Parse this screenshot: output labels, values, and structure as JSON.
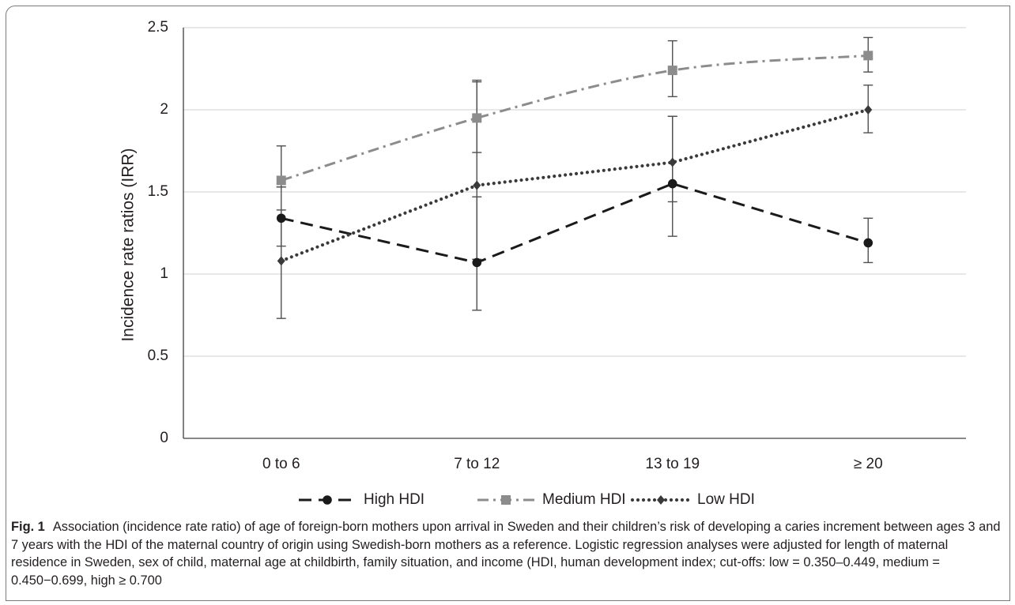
{
  "chart_data": {
    "type": "line",
    "title": "",
    "xlabel": "",
    "ylabel": "Incidence rate ratios (IRR)",
    "categories": [
      "0 to 6",
      "7 to 12",
      "13 to 19",
      "≥ 20"
    ],
    "ylim": [
      0,
      2.5
    ],
    "yticks": [
      "0",
      "0.5",
      "1",
      "1.5",
      "2",
      "2.5"
    ],
    "grid": "horizontal",
    "legend_position": "bottom",
    "series": [
      {
        "name": "High HDI",
        "values": [
          1.34,
          1.07,
          1.55,
          1.19
        ],
        "error_low": [
          1.17,
          0.78,
          1.23,
          1.07
        ],
        "error_high": [
          1.53,
          1.47,
          1.96,
          1.34
        ],
        "color": "#1a1a1a",
        "dash": "long-dash",
        "marker": "circle"
      },
      {
        "name": "Medium HDI",
        "values": [
          1.57,
          1.95,
          2.24,
          2.33
        ],
        "error_low": [
          1.53,
          1.74,
          2.08,
          2.23
        ],
        "error_high": [
          1.78,
          2.18,
          2.42,
          2.44
        ],
        "color": "#8c8c8c",
        "dash": "dash-dot",
        "marker": "square"
      },
      {
        "name": "Low HDI",
        "values": [
          1.08,
          1.54,
          1.68,
          2.0
        ],
        "error_low": [
          0.73,
          1.09,
          1.44,
          1.86
        ],
        "error_high": [
          1.39,
          2.17,
          1.96,
          2.15
        ],
        "color": "#3a3a3a",
        "dash": "dotted",
        "marker": "diamond"
      }
    ]
  },
  "caption": {
    "label": "Fig. 1",
    "text": "Association (incidence rate ratio) of age of foreign-born mothers upon arrival in Sweden and their children’s risk of developing a caries increment between ages 3 and 7 years with the HDI of the maternal country of origin using Swedish-born mothers as a reference. Logistic regression analyses were adjusted for length of maternal residence in Sweden, sex of child, maternal age at childbirth, family situation, and income (HDI, human development index; cut-offs: low = 0.350–0.449, medium = 0.450−0.699, high ≥ 0.700"
  },
  "colors": {
    "gridline": "#d9d9d9",
    "axis": "#404040",
    "text": "#231f20"
  }
}
